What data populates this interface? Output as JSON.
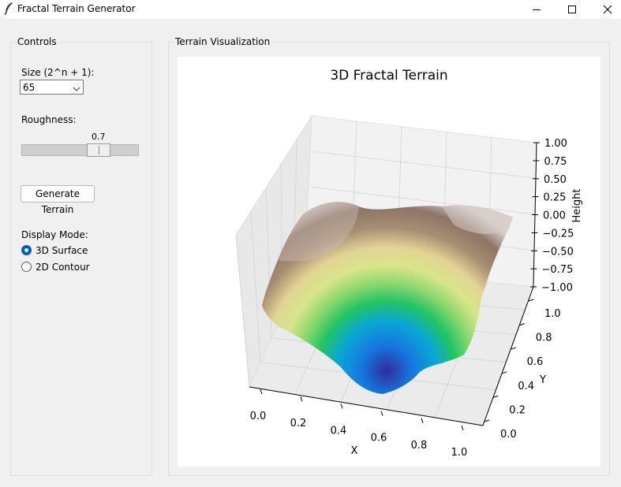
{
  "window": {
    "title": "Fractal Terrain Generator",
    "icon": "feather-icon",
    "controls": [
      "minimize-icon",
      "maximize-icon",
      "close-icon"
    ]
  },
  "controls_panel": {
    "title": "Controls",
    "size_label": "Size (2^n + 1):",
    "size_value": "65",
    "roughness_label": "Roughness:",
    "roughness_value": "0.7",
    "roughness_level": 0.7,
    "generate_button": "Generate Terrain",
    "display_mode_label": "Display Mode:",
    "display_modes": [
      {
        "label": "3D Surface",
        "selected": true
      },
      {
        "label": "2D Contour",
        "selected": false
      }
    ]
  },
  "viz_panel": {
    "title": "Terrain Visualization"
  },
  "chart_data": {
    "type": "surface",
    "title": "3D Fractal Terrain",
    "xlabel": "X",
    "ylabel": "Y",
    "zlabel": "Height",
    "x_ticks": [
      "0.0",
      "0.2",
      "0.4",
      "0.6",
      "0.8",
      "1.0"
    ],
    "y_ticks": [
      "0.0",
      "0.2",
      "0.4",
      "0.6",
      "0.8",
      "1.0"
    ],
    "z_ticks": [
      "1.00",
      "0.75",
      "0.50",
      "0.25",
      "0.00",
      "−0.25",
      "−0.50",
      "−0.75",
      "−1.00"
    ],
    "xlim": [
      0,
      1
    ],
    "ylim": [
      0,
      1
    ],
    "zlim": [
      -1,
      1
    ],
    "colormap": "terrain",
    "grid": true
  }
}
